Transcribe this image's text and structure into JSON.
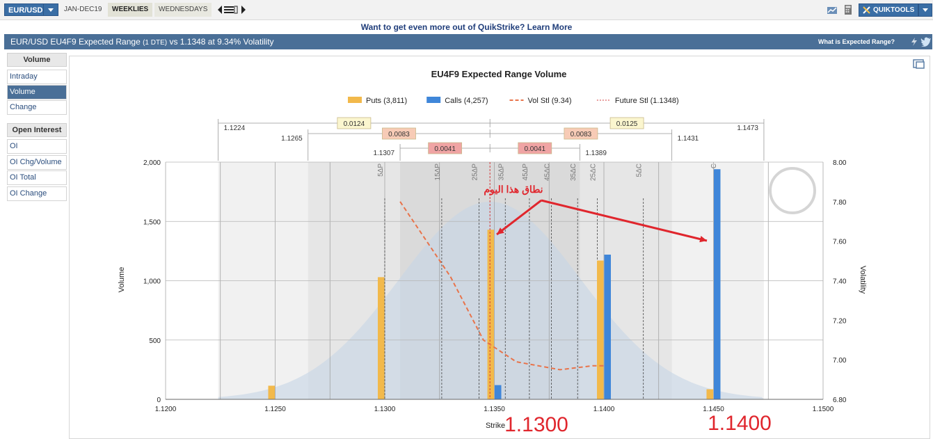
{
  "toolbar": {
    "instrument": "EUR/USD",
    "range_tab": "JAN-DEC19",
    "weeklies_tab": "WEEKLIES",
    "wednesdays_tab": "WEDNESDAYS",
    "quiktools": "QUIKTOOLS"
  },
  "promo": "Want to get even more out of QuikStrike? Learn More",
  "titlebar": {
    "title_a": "EUR/USD EU4F9 Expected Range",
    "title_dte": "(1 DTE)",
    "title_b": "vs 1.1348 at 9.34% Volatility",
    "help": "What is Expected Range?"
  },
  "sidebar": {
    "volume_head": "Volume",
    "volume_items": [
      "Intraday",
      "Volume",
      "Change"
    ],
    "oi_head": "Open Interest",
    "oi_items": [
      "OI",
      "OI Chg/Volume",
      "OI Total",
      "OI Change"
    ]
  },
  "colors": {
    "puts": "#f2b94b",
    "calls": "#3f86d9",
    "vol_stl": "#e8734a",
    "future_stl": "#d23a3a",
    "range_inner": "#f0a4a4",
    "range_mid": "#f7cbb6",
    "range_outer": "#fbf6cf",
    "annotation": "#e0262d",
    "header_blue": "#4a6f97"
  },
  "chart_data": {
    "type": "bar",
    "title": "EU4F9 Expected Range Volume",
    "xlabel": "Strike",
    "ylabel": "Volume",
    "y2label": "Volatility",
    "xlim": [
      1.12,
      1.15
    ],
    "ylim": [
      0,
      2000
    ],
    "y2lim": [
      6.8,
      8.0
    ],
    "x_ticks": [
      "1.1200",
      "1.1250",
      "1.1300",
      "1.1350",
      "1.1400",
      "1.1450",
      "1.1500"
    ],
    "y_ticks": [
      "0",
      "500",
      "1,000",
      "1,500",
      "2,000"
    ],
    "y2_ticks": [
      "6.80",
      "7.00",
      "7.20",
      "7.40",
      "7.60",
      "7.80",
      "8.00"
    ],
    "legend": [
      {
        "label": "Puts (3,811)",
        "kind": "bar",
        "color": "#f2b94b"
      },
      {
        "label": "Calls (4,257)",
        "kind": "bar",
        "color": "#3f86d9"
      },
      {
        "label": "Vol Stl (9.34)",
        "kind": "dash",
        "color": "#e8734a"
      },
      {
        "label": "Future Stl (1.1348)",
        "kind": "dot",
        "color": "#d23a3a"
      }
    ],
    "series": [
      {
        "name": "Puts",
        "x": [
          1.125,
          1.13,
          1.135,
          1.14,
          1.145
        ],
        "values": [
          115,
          1030,
          1430,
          1170,
          85
        ]
      },
      {
        "name": "Calls",
        "x": [
          1.135,
          1.14,
          1.145
        ],
        "values": [
          120,
          1220,
          1940
        ]
      }
    ],
    "future_settle": 1.1348,
    "vol_curve": {
      "x": [
        1.1307,
        1.133,
        1.1345,
        1.136,
        1.138,
        1.1395,
        1.14
      ],
      "y": [
        7.8,
        7.42,
        7.1,
        6.99,
        6.95,
        6.97,
        6.97
      ]
    },
    "ranges": [
      {
        "low": 1.1224,
        "high": 1.1473,
        "low_label": "1.1224",
        "high_label": "1.1473",
        "down": "0.0124",
        "up": "0.0125"
      },
      {
        "low": 1.1265,
        "high": 1.1431,
        "low_label": "1.1265",
        "high_label": "1.1431",
        "down": "0.0083",
        "up": "0.0083"
      },
      {
        "low": 1.1307,
        "high": 1.1389,
        "low_label": "1.1307",
        "high_label": "1.1389",
        "down": "0.0041",
        "up": "0.0041"
      }
    ],
    "delta_labels": [
      {
        "x": 1.13,
        "label": "5ΔP"
      },
      {
        "x": 1.1326,
        "label": "15ΔP"
      },
      {
        "x": 1.1343,
        "label": "25ΔP"
      },
      {
        "x": 1.1355,
        "label": "35ΔP"
      },
      {
        "x": 1.1366,
        "label": "45ΔP"
      },
      {
        "x": 1.1376,
        "label": "45ΔC"
      },
      {
        "x": 1.1388,
        "label": "35ΔC"
      },
      {
        "x": 1.1397,
        "label": "25ΔC"
      },
      {
        "x": 1.1418,
        "label": "5ΔC"
      },
      {
        "x": 1.1452,
        "label": "C"
      }
    ],
    "annotations": {
      "arabic": "نطاق هذا اليوم",
      "left_price": "1.1300",
      "right_price": "1.1400"
    }
  }
}
